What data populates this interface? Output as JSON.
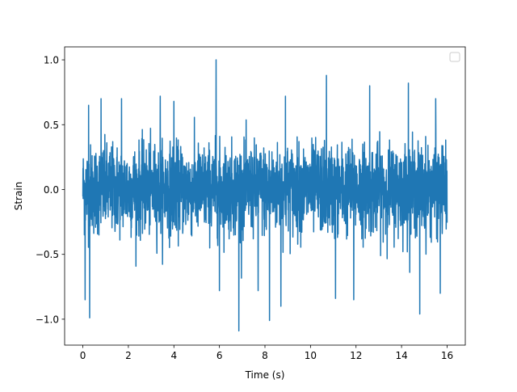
{
  "chart_data": {
    "type": "line",
    "title": "",
    "xlabel": "Time (s)",
    "ylabel": "Strain",
    "xlim": [
      -0.8,
      16.8
    ],
    "ylim": [
      -1.2,
      1.1
    ],
    "xticks": [
      0,
      2,
      4,
      6,
      8,
      10,
      12,
      14,
      16
    ],
    "yticks": [
      -1.0,
      -0.5,
      0.0,
      0.5,
      1.0
    ],
    "xtick_labels": [
      "0",
      "2",
      "4",
      "6",
      "8",
      "10",
      "12",
      "14",
      "16"
    ],
    "ytick_labels": [
      "−1.0",
      "−0.5",
      "0.0",
      "0.5",
      "1.0"
    ],
    "grid": false,
    "legend": {
      "placement": "top-right",
      "entries": []
    },
    "series": [
      {
        "color": "#1f77b4",
        "x_start": 0,
        "x_end": 16,
        "y_min": -1.1,
        "y_max": 1.0,
        "peaks": [
          {
            "x": 0.1,
            "y": -0.85
          },
          {
            "x": 0.25,
            "y": 0.65
          },
          {
            "x": 0.3,
            "y": -0.99
          },
          {
            "x": 0.8,
            "y": 0.7
          },
          {
            "x": 1.7,
            "y": 0.7
          },
          {
            "x": 3.4,
            "y": 0.72
          },
          {
            "x": 4.0,
            "y": 0.68
          },
          {
            "x": 5.85,
            "y": 1.0
          },
          {
            "x": 6.0,
            "y": -0.78
          },
          {
            "x": 6.85,
            "y": -1.09
          },
          {
            "x": 7.7,
            "y": -0.78
          },
          {
            "x": 8.2,
            "y": -1.01
          },
          {
            "x": 8.7,
            "y": -0.9
          },
          {
            "x": 8.9,
            "y": 0.72
          },
          {
            "x": 10.7,
            "y": 0.88
          },
          {
            "x": 11.1,
            "y": -0.84
          },
          {
            "x": 11.9,
            "y": -0.85
          },
          {
            "x": 12.6,
            "y": 0.8
          },
          {
            "x": 14.3,
            "y": 0.82
          },
          {
            "x": 14.8,
            "y": -0.96
          },
          {
            "x": 15.5,
            "y": 0.7
          },
          {
            "x": 15.7,
            "y": -0.8
          }
        ]
      }
    ]
  }
}
